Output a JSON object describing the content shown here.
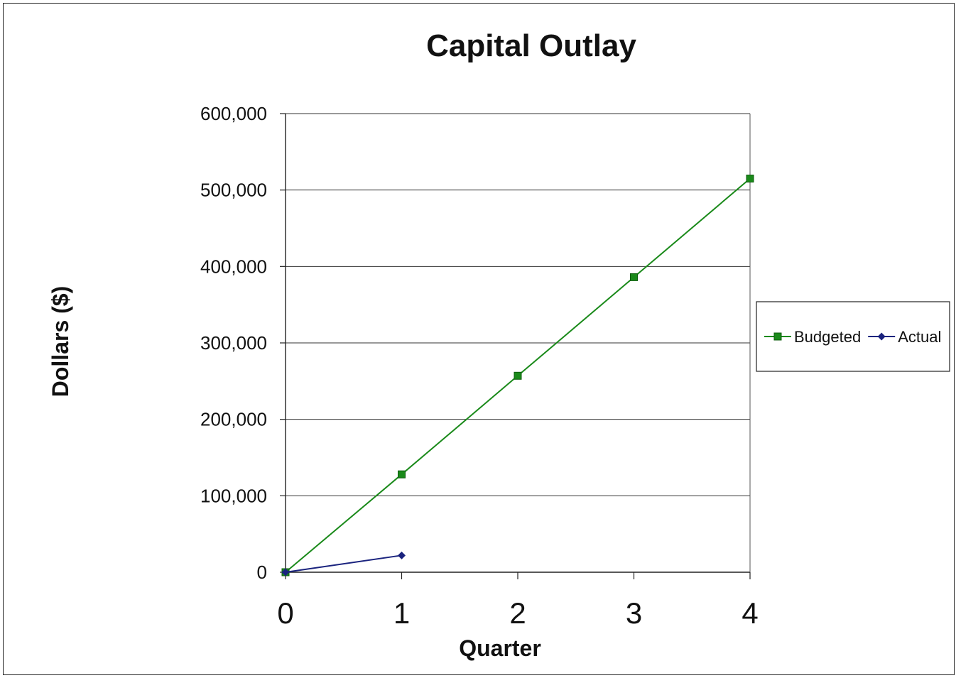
{
  "chart_data": {
    "type": "line",
    "title": "Capital Outlay",
    "xlabel": "Quarter",
    "ylabel": "Dollars ($)",
    "x": [
      0,
      1,
      2,
      3,
      4
    ],
    "xticks": [
      "0",
      "1",
      "2",
      "3",
      "4"
    ],
    "xlim": [
      0,
      4
    ],
    "ylim": [
      0,
      600000
    ],
    "yticks": [
      "0",
      "100,000",
      "200,000",
      "300,000",
      "400,000",
      "500,000",
      "600,000"
    ],
    "ytick_values": [
      0,
      100000,
      200000,
      300000,
      400000,
      500000,
      600000
    ],
    "grid": "horizontal",
    "legend_position": "right",
    "series": [
      {
        "name": "Budgeted",
        "x": [
          0,
          1,
          2,
          3,
          4
        ],
        "values": [
          0,
          128000,
          257000,
          386000,
          515000
        ],
        "color": "#1a8a1a",
        "marker": "square"
      },
      {
        "name": "Actual",
        "x": [
          0,
          1
        ],
        "values": [
          0,
          22000
        ],
        "color": "#1a237e",
        "marker": "diamond"
      }
    ]
  }
}
